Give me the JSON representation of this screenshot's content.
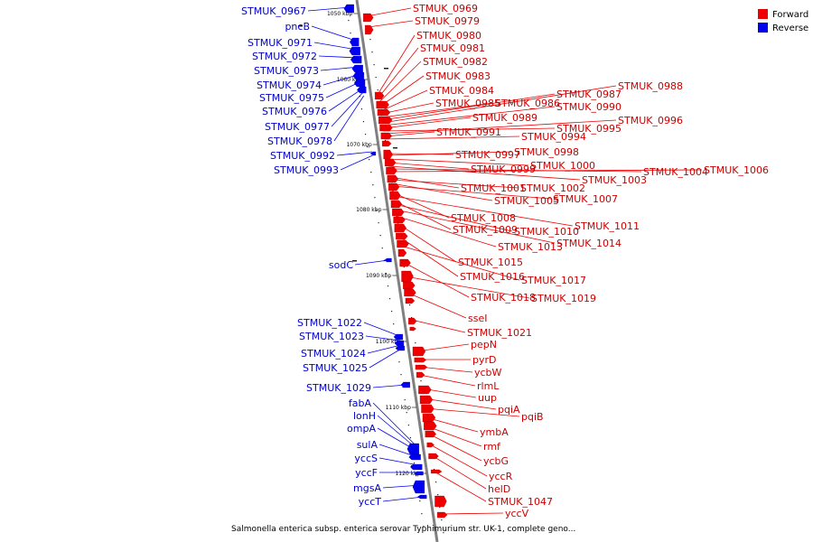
{
  "legend": {
    "forward_label": "Forward",
    "reverse_label": "Reverse",
    "forward_color": "#ee0000",
    "reverse_color": "#0000ee"
  },
  "caption": "Salmonella enterica subsp. enterica serovar Typhimurium str. UK-1, complete geno...",
  "ticks": [
    "1050 kbp",
    "1060 kbp",
    "1070 kbp",
    "1080 kbp",
    "1090 kbp",
    "1100 kbp",
    "1110 kbp",
    "1120 kbp"
  ],
  "forward_labels": [
    "STMUK_0969",
    "STMUK_0979",
    "STMUK_0980",
    "STMUK_0981",
    "STMUK_0982",
    "STMUK_0983",
    "STMUK_0984",
    "STMUK_0985",
    "STMUK_0986",
    "STMUK_0987",
    "STMUK_0988",
    "STMUK_0990",
    "STMUK_0989",
    "STMUK_0995",
    "STMUK_0996",
    "STMUK_0991",
    "STMUK_0994",
    "STMUK_0997",
    "STMUK_0998",
    "STMUK_1000",
    "STMUK_0999",
    "STMUK_1003",
    "STMUK_1004",
    "STMUK_1006",
    "STMUK_1001",
    "STMUK_1002",
    "STMUK_1005",
    "STMUK_1007",
    "STMUK_1008",
    "STMUK_1011",
    "STMUK_1009",
    "STMUK_1010",
    "STMUK_1014",
    "STMUK_1013",
    "STMUK_1015",
    "STMUK_1016",
    "STMUK_1017",
    "STMUK_1018",
    "STMUK_1019",
    "sseI",
    "STMUK_1021",
    "pepN",
    "pyrD",
    "ycbW",
    "rlmL",
    "uup",
    "pqiA",
    "pqiB",
    "ymbA",
    "rmf",
    "ycbG",
    "yccR",
    "helD",
    "STMUK_1047",
    "yccV"
  ],
  "reverse_labels": [
    "STMUK_0967",
    "pncB",
    "STMUK_0971",
    "STMUK_0972",
    "STMUK_0973",
    "STMUK_0974",
    "STMUK_0975",
    "STMUK_0976",
    "STMUK_0977",
    "STMUK_0978",
    "STMUK_0992",
    "STMUK_0993",
    "sodC",
    "STMUK_1022",
    "STMUK_1023",
    "STMUK_1024",
    "STMUK_1025",
    "STMUK_1029",
    "fabA",
    "lonH",
    "ompA",
    "sulA",
    "yccS",
    "yccF",
    "mgsA",
    "yccT"
  ]
}
